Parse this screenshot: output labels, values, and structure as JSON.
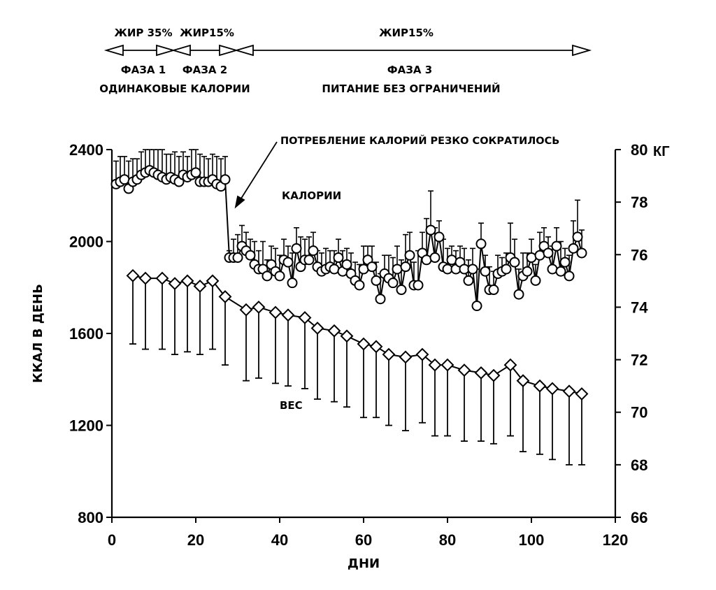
{
  "chart_data": {
    "type": "scatter",
    "phases": [
      {
        "fat": "ЖИР 35%",
        "name": "ФАЗА 1",
        "start_day": 0,
        "end_day": 12
      },
      {
        "fat": "ЖИР15%",
        "name": "ФАЗА 2",
        "start_day": 12,
        "end_day": 28
      },
      {
        "fat": "ЖИР15%",
        "name": "ФАЗА 3",
        "start_day": 28,
        "end_day": 114
      }
    ],
    "phase_caption_12": "ОДИНАКОВЫЕ КАЛОРИИ",
    "phase_caption_3": "ПИТАНИЕ БЕЗ ОГРАНИЧЕНИЙ",
    "annotation": "ПОТРЕБЛЕНИЕ КАЛОРИЙ РЕЗКО СОКРАТИЛОСЬ",
    "xlabel": "ДНИ",
    "ylabel_left": "ККАЛ В ДЕНЬ",
    "ylabel_right_unit": "КГ",
    "xlim": [
      0,
      120
    ],
    "ylim_left": [
      800,
      2400
    ],
    "ylim_right": [
      66,
      80
    ],
    "x_ticks": [
      0,
      20,
      40,
      60,
      80,
      100,
      120
    ],
    "y_left_ticks": [
      800,
      1200,
      1600,
      2000,
      2400
    ],
    "y_right_ticks": [
      66,
      68,
      70,
      72,
      74,
      76,
      78,
      80
    ],
    "series": [
      {
        "name": "КАЛОРИИ",
        "axis": "left",
        "marker": "circle",
        "x": [
          1,
          2,
          3,
          4,
          5,
          6,
          7,
          8,
          9,
          10,
          11,
          12,
          13,
          14,
          15,
          16,
          17,
          18,
          19,
          20,
          21,
          22,
          23,
          24,
          25,
          26,
          27,
          28,
          29,
          30,
          31,
          32,
          33,
          34,
          35,
          36,
          37,
          38,
          39,
          40,
          41,
          42,
          43,
          44,
          45,
          46,
          47,
          48,
          49,
          50,
          51,
          52,
          53,
          54,
          55,
          56,
          57,
          58,
          59,
          60,
          61,
          62,
          63,
          64,
          65,
          66,
          67,
          68,
          69,
          70,
          71,
          72,
          73,
          74,
          75,
          76,
          77,
          78,
          79,
          80,
          81,
          82,
          83,
          84,
          85,
          86,
          87,
          88,
          89,
          90,
          91,
          92,
          93,
          94,
          95,
          96,
          97,
          98,
          99,
          100,
          101,
          102,
          103,
          104,
          105,
          106,
          107,
          108,
          109,
          110,
          111,
          112
        ],
        "y": [
          2250,
          2260,
          2270,
          2230,
          2260,
          2270,
          2290,
          2300,
          2310,
          2300,
          2290,
          2280,
          2270,
          2280,
          2270,
          2260,
          2290,
          2280,
          2290,
          2300,
          2260,
          2260,
          2260,
          2270,
          2250,
          2240,
          2270,
          1930,
          1930,
          1930,
          1980,
          1960,
          1940,
          1900,
          1880,
          1880,
          1850,
          1900,
          1870,
          1850,
          1920,
          1910,
          1820,
          1970,
          1890,
          1920,
          1920,
          1960,
          1890,
          1870,
          1880,
          1890,
          1880,
          1930,
          1870,
          1900,
          1860,
          1830,
          1810,
          1880,
          1920,
          1890,
          1830,
          1750,
          1860,
          1840,
          1820,
          1880,
          1790,
          1890,
          1940,
          1810,
          1810,
          1950,
          1920,
          2050,
          1930,
          2020,
          1890,
          1880,
          1920,
          1880,
          1910,
          1880,
          1830,
          1880,
          1720,
          1990,
          1870,
          1790,
          1790,
          1860,
          1870,
          1880,
          1930,
          1910,
          1770,
          1850,
          1870,
          1930,
          1830,
          1940,
          1980,
          1950,
          1880,
          1980,
          1870,
          1910,
          1850,
          1970,
          2020,
          1950
        ],
        "err": [
          100,
          110,
          100,
          120,
          100,
          90,
          100,
          100,
          90,
          100,
          110,
          120,
          110,
          100,
          120,
          110,
          100,
          90,
          110,
          100,
          120,
          110,
          100,
          110,
          120,
          120,
          100,
          30,
          80,
          100,
          90,
          80,
          70,
          100,
          80,
          120,
          70,
          80,
          100,
          90,
          90,
          70,
          130,
          90,
          130,
          90,
          100,
          80,
          70,
          80,
          90,
          70,
          80,
          80,
          90,
          70,
          90,
          80,
          90,
          100,
          60,
          90,
          80,
          110,
          80,
          100,
          110,
          100,
          130,
          140,
          100,
          100,
          150,
          90,
          180,
          170,
          130,
          70,
          120,
          90,
          60,
          80,
          70,
          90,
          90,
          90,
          160,
          90,
          70,
          100,
          80,
          80,
          60,
          70,
          150,
          100,
          110,
          100,
          80,
          80,
          70,
          100,
          80,
          70,
          100,
          80,
          130,
          60,
          90,
          120,
          160,
          100
        ]
      },
      {
        "name": "ВЕС",
        "axis": "right",
        "marker": "diamond",
        "x": [
          5,
          8,
          12,
          15,
          18,
          21,
          24,
          27,
          32,
          35,
          39,
          42,
          46,
          49,
          53,
          56,
          60,
          63,
          66,
          70,
          74,
          77,
          80,
          84,
          88,
          91,
          95,
          98,
          102,
          105,
          109,
          112
        ],
        "y": [
          75.2,
          75.1,
          75.1,
          74.9,
          75.0,
          74.8,
          75.0,
          74.4,
          73.9,
          74.0,
          73.8,
          73.7,
          73.6,
          73.2,
          73.1,
          72.9,
          72.6,
          72.5,
          72.2,
          72.1,
          72.2,
          71.8,
          71.8,
          71.6,
          71.5,
          71.4,
          71.8,
          71.2,
          71.0,
          70.9,
          70.8,
          70.7
        ],
        "err_low": [
          2.6,
          2.7,
          2.7,
          2.7,
          2.7,
          2.6,
          2.6,
          2.6,
          2.7,
          2.7,
          2.7,
          2.7,
          2.7,
          2.7,
          2.7,
          2.7,
          2.8,
          2.7,
          2.7,
          2.8,
          2.6,
          2.7,
          2.7,
          2.7,
          2.6,
          2.6,
          2.7,
          2.7,
          2.6,
          2.7,
          2.8,
          2.7
        ]
      }
    ]
  }
}
